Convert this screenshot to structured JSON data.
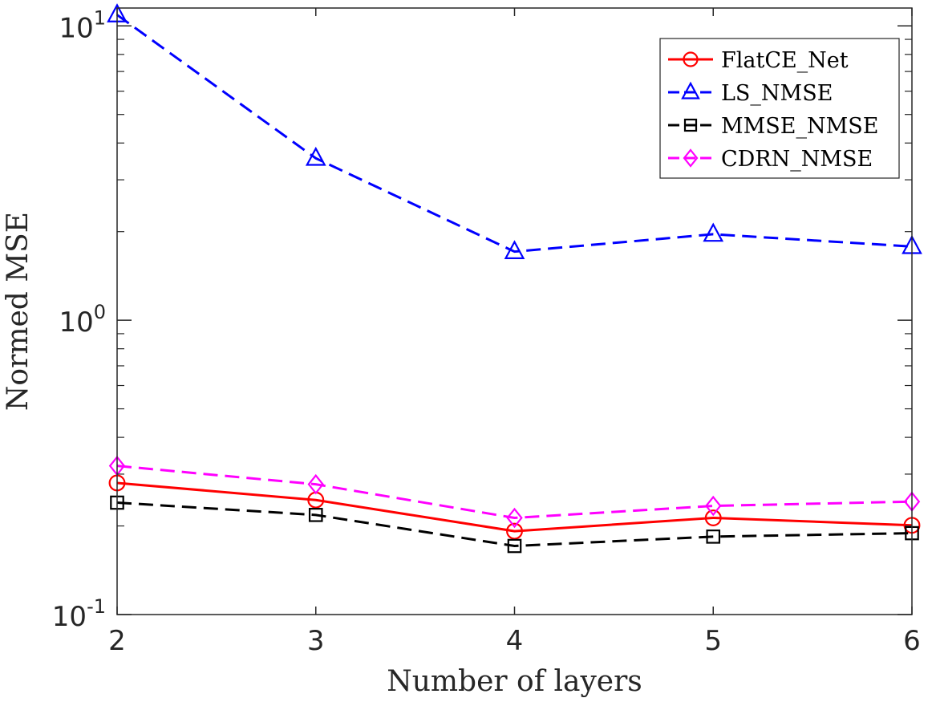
{
  "chart_data": {
    "type": "line",
    "title": "",
    "xlabel": "Number of layers",
    "ylabel": "Normed MSE",
    "x": [
      2,
      3,
      4,
      5,
      6
    ],
    "xlim": [
      2,
      6
    ],
    "ylim": [
      0.1,
      11.5
    ],
    "yscale": "log",
    "x_ticks": [
      "2",
      "3",
      "4",
      "5",
      "6"
    ],
    "y_ticks": [
      {
        "value": 0.1,
        "base": "10",
        "exp": "-1"
      },
      {
        "value": 1,
        "base": "10",
        "exp": "0"
      },
      {
        "value": 10,
        "base": "10",
        "exp": "1"
      }
    ],
    "grid": false,
    "legend_position": "top-right",
    "series": [
      {
        "name": "FlatCE_Net",
        "values": [
          0.28,
          0.245,
          0.192,
          0.213,
          0.201
        ],
        "color": "#ff0000",
        "dash": "solid",
        "marker": "circle"
      },
      {
        "name": "LS_NMSE",
        "values": [
          10.9,
          3.55,
          1.71,
          1.96,
          1.78
        ],
        "color": "#0000ff",
        "dash": "dashed",
        "marker": "triangle"
      },
      {
        "name": "MMSE_NMSE",
        "values": [
          0.24,
          0.218,
          0.171,
          0.184,
          0.189
        ],
        "color": "#000000",
        "dash": "dashed",
        "marker": "square"
      },
      {
        "name": "CDRN_NMSE",
        "values": [
          0.32,
          0.277,
          0.213,
          0.234,
          0.242
        ],
        "color": "#ff00ff",
        "dash": "dashed",
        "marker": "diamond"
      }
    ]
  }
}
